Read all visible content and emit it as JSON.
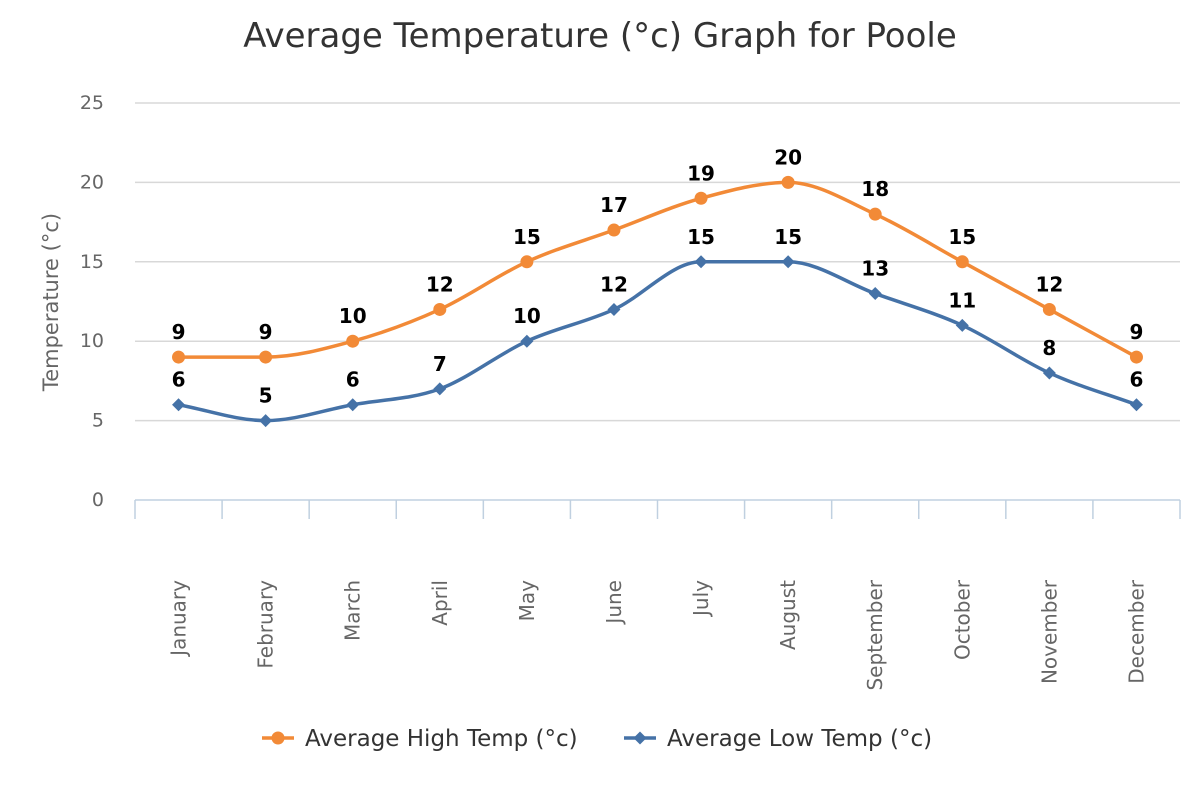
{
  "chart_data": {
    "type": "line",
    "title": "Average Temperature (°c) Graph for Poole",
    "xlabel": "",
    "ylabel": "Temperature (°c)",
    "ylim": [
      0,
      25
    ],
    "yticks": [
      "0",
      "5",
      "10",
      "15",
      "20",
      "25"
    ],
    "grid": true,
    "legend_position": "bottom",
    "categories": [
      "January",
      "February",
      "March",
      "April",
      "May",
      "June",
      "July",
      "August",
      "September",
      "October",
      "November",
      "December"
    ],
    "series": [
      {
        "name": "Average High Temp (°c)",
        "values": [
          9,
          9,
          10,
          12,
          15,
          17,
          19,
          20,
          18,
          15,
          12,
          9
        ],
        "color": "#f28a37",
        "marker": "circle"
      },
      {
        "name": "Average Low Temp (°c)",
        "values": [
          6,
          5,
          6,
          7,
          10,
          12,
          15,
          15,
          13,
          11,
          8,
          6
        ],
        "color": "#4572a7",
        "marker": "diamond"
      }
    ]
  }
}
